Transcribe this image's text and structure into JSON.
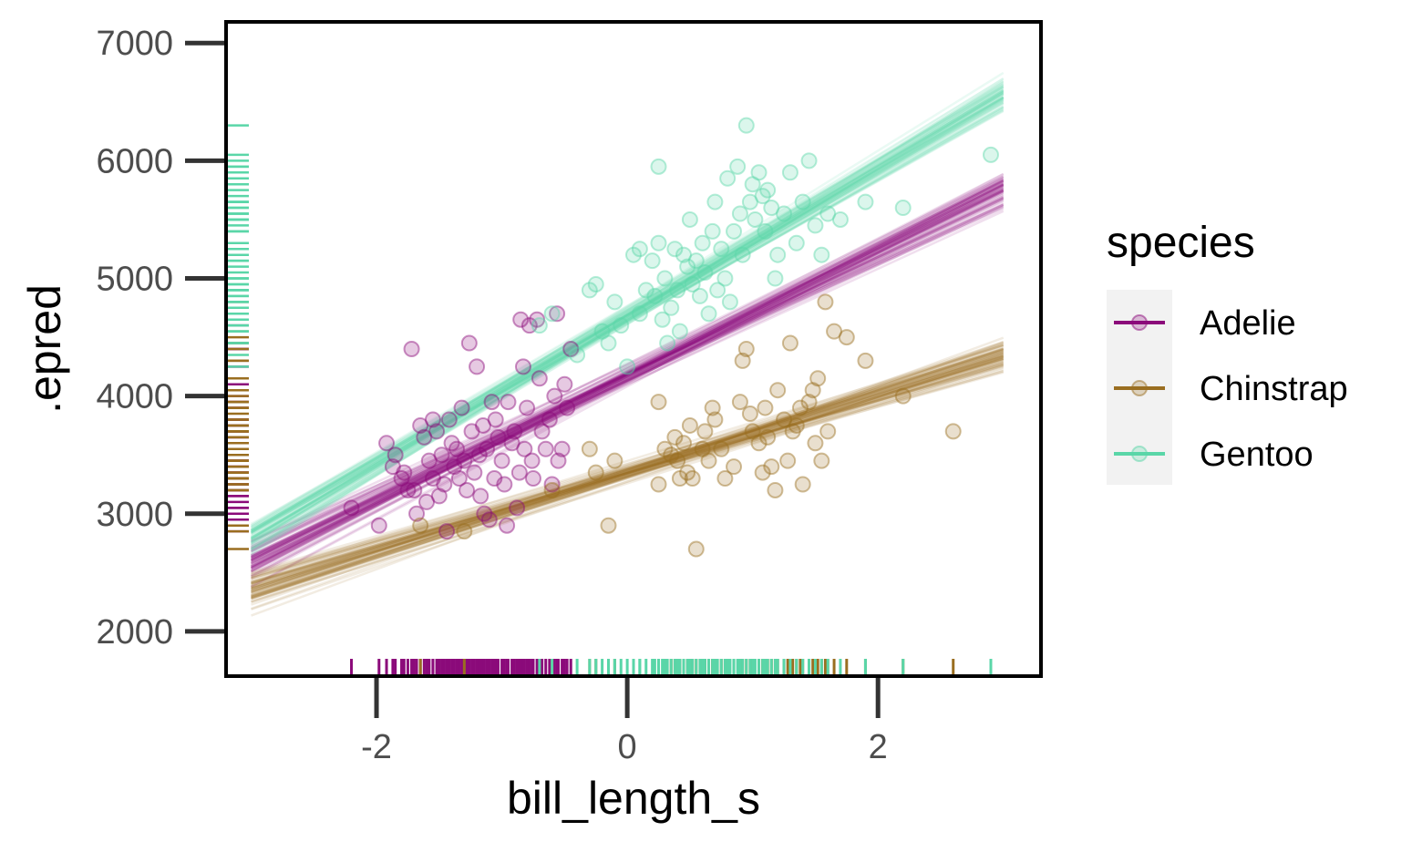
{
  "chart_data": {
    "type": "scatter",
    "xlabel": "bill_length_s",
    "ylabel": ".epred",
    "xlim": [
      -3.2,
      3.3
    ],
    "ylim": [
      1620,
      7180
    ],
    "x_ticks": [
      -2,
      0,
      2
    ],
    "x_tick_labels": [
      "-2",
      "0",
      "2"
    ],
    "y_ticks": [
      2000,
      3000,
      4000,
      5000,
      6000,
      7000
    ],
    "y_tick_labels": [
      "2000",
      "3000",
      "4000",
      "5000",
      "6000",
      "7000"
    ],
    "grid": false,
    "rugs": true,
    "legend": {
      "title": "species",
      "position": "right",
      "entries": [
        "Adelie",
        "Chinstrap",
        "Gentoo"
      ]
    },
    "series": [
      {
        "name": "Adelie",
        "color": "#8B0A7A",
        "fit_line": {
          "x": [
            -3.0,
            3.0
          ],
          "y": [
            2600,
            5750
          ]
        },
        "points": [
          [
            -2.2,
            3050
          ],
          [
            -1.98,
            2900
          ],
          [
            -1.92,
            3600
          ],
          [
            -1.87,
            3400
          ],
          [
            -1.85,
            3500
          ],
          [
            -1.8,
            3300
          ],
          [
            -1.78,
            3350
          ],
          [
            -1.75,
            3200
          ],
          [
            -1.72,
            4400
          ],
          [
            -1.7,
            3200
          ],
          [
            -1.68,
            3000
          ],
          [
            -1.65,
            3750
          ],
          [
            -1.62,
            3650
          ],
          [
            -1.6,
            3100
          ],
          [
            -1.58,
            3450
          ],
          [
            -1.55,
            3800
          ],
          [
            -1.55,
            3300
          ],
          [
            -1.52,
            3700
          ],
          [
            -1.5,
            3150
          ],
          [
            -1.48,
            3500
          ],
          [
            -1.46,
            3250
          ],
          [
            -1.44,
            2850
          ],
          [
            -1.42,
            3800
          ],
          [
            -1.4,
            3600
          ],
          [
            -1.38,
            3400
          ],
          [
            -1.36,
            3550
          ],
          [
            -1.34,
            3300
          ],
          [
            -1.32,
            3900
          ],
          [
            -1.3,
            3450
          ],
          [
            -1.28,
            3200
          ],
          [
            -1.26,
            4450
          ],
          [
            -1.24,
            3700
          ],
          [
            -1.22,
            3350
          ],
          [
            -1.2,
            4250
          ],
          [
            -1.18,
            3500
          ],
          [
            -1.17,
            3150
          ],
          [
            -1.15,
            3750
          ],
          [
            -1.14,
            3000
          ],
          [
            -1.12,
            3550
          ],
          [
            -1.1,
            2950
          ],
          [
            -1.08,
            3950
          ],
          [
            -1.06,
            3300
          ],
          [
            -1.05,
            3800
          ],
          [
            -1.03,
            3650
          ],
          [
            -1.0,
            3450
          ],
          [
            -0.98,
            3250
          ],
          [
            -0.96,
            2900
          ],
          [
            -0.95,
            3950
          ],
          [
            -0.92,
            3600
          ],
          [
            -0.9,
            3700
          ],
          [
            -0.88,
            3050
          ],
          [
            -0.86,
            3350
          ],
          [
            -0.85,
            4650
          ],
          [
            -0.83,
            4250
          ],
          [
            -0.82,
            3550
          ],
          [
            -0.8,
            3900
          ],
          [
            -0.78,
            4600
          ],
          [
            -0.76,
            3450
          ],
          [
            -0.75,
            3300
          ],
          [
            -0.72,
            4650
          ],
          [
            -0.7,
            4150
          ],
          [
            -0.68,
            3700
          ],
          [
            -0.65,
            3550
          ],
          [
            -0.62,
            3800
          ],
          [
            -0.6,
            3250
          ],
          [
            -0.58,
            4000
          ],
          [
            -0.56,
            4700
          ],
          [
            -0.55,
            3450
          ],
          [
            -0.52,
            3550
          ],
          [
            -0.5,
            4100
          ],
          [
            -0.48,
            3900
          ],
          [
            -0.45,
            4400
          ]
        ]
      },
      {
        "name": "Chinstrap",
        "color": "#9A6E20",
        "fit_line": {
          "x": [
            -3.0,
            3.0
          ],
          "y": [
            2350,
            4350
          ]
        },
        "points": [
          [
            -1.65,
            2900
          ],
          [
            -1.3,
            2850
          ],
          [
            -0.6,
            3200
          ],
          [
            -0.3,
            3550
          ],
          [
            -0.25,
            3350
          ],
          [
            -0.1,
            3450
          ],
          [
            -0.15,
            2900
          ],
          [
            0.25,
            3950
          ],
          [
            0.25,
            3250
          ],
          [
            0.3,
            3550
          ],
          [
            0.35,
            3500
          ],
          [
            0.38,
            3650
          ],
          [
            0.4,
            3450
          ],
          [
            0.42,
            3300
          ],
          [
            0.45,
            3600
          ],
          [
            0.48,
            3350
          ],
          [
            0.5,
            3750
          ],
          [
            0.52,
            3300
          ],
          [
            0.55,
            2700
          ],
          [
            0.6,
            3550
          ],
          [
            0.62,
            3700
          ],
          [
            0.65,
            3450
          ],
          [
            0.68,
            3900
          ],
          [
            0.7,
            3800
          ],
          [
            0.75,
            3550
          ],
          [
            0.78,
            3300
          ],
          [
            0.85,
            3400
          ],
          [
            0.9,
            3950
          ],
          [
            0.92,
            4300
          ],
          [
            0.95,
            4400
          ],
          [
            0.98,
            3850
          ],
          [
            1.0,
            3700
          ],
          [
            1.05,
            3600
          ],
          [
            1.08,
            3350
          ],
          [
            1.1,
            3900
          ],
          [
            1.12,
            3650
          ],
          [
            1.15,
            3400
          ],
          [
            1.18,
            3200
          ],
          [
            1.2,
            4050
          ],
          [
            1.25,
            3800
          ],
          [
            1.28,
            3450
          ],
          [
            1.3,
            4450
          ],
          [
            1.32,
            3700
          ],
          [
            1.35,
            3750
          ],
          [
            1.38,
            3900
          ],
          [
            1.4,
            3250
          ],
          [
            1.45,
            3950
          ],
          [
            1.48,
            4050
          ],
          [
            1.5,
            3600
          ],
          [
            1.52,
            4150
          ],
          [
            1.55,
            3450
          ],
          [
            1.58,
            4800
          ],
          [
            1.6,
            3700
          ],
          [
            1.65,
            4550
          ],
          [
            1.75,
            4500
          ],
          [
            1.9,
            4300
          ],
          [
            2.2,
            4000
          ],
          [
            2.6,
            3700
          ]
        ]
      },
      {
        "name": "Gentoo",
        "color": "#5AD6A8",
        "fit_line": {
          "x": [
            -3.0,
            3.0
          ],
          "y": [
            2800,
            6550
          ]
        },
        "points": [
          [
            -0.6,
            4700
          ],
          [
            -0.4,
            4350
          ],
          [
            -0.3,
            4900
          ],
          [
            -0.25,
            4950
          ],
          [
            -0.2,
            4550
          ],
          [
            -0.15,
            4450
          ],
          [
            -0.1,
            4800
          ],
          [
            -0.05,
            4600
          ],
          [
            0.0,
            4250
          ],
          [
            0.05,
            5200
          ],
          [
            0.1,
            4700
          ],
          [
            0.15,
            4900
          ],
          [
            0.2,
            5150
          ],
          [
            0.22,
            4850
          ],
          [
            0.25,
            5300
          ],
          [
            0.28,
            4650
          ],
          [
            0.3,
            5000
          ],
          [
            0.32,
            4450
          ],
          [
            0.35,
            4750
          ],
          [
            0.38,
            5250
          ],
          [
            0.4,
            4900
          ],
          [
            0.42,
            4550
          ],
          [
            0.45,
            5200
          ],
          [
            0.48,
            5100
          ],
          [
            0.5,
            5500
          ],
          [
            0.52,
            4950
          ],
          [
            0.55,
            5150
          ],
          [
            0.58,
            4850
          ],
          [
            0.6,
            5300
          ],
          [
            0.62,
            5050
          ],
          [
            0.65,
            4700
          ],
          [
            0.68,
            5400
          ],
          [
            0.7,
            5650
          ],
          [
            0.72,
            4900
          ],
          [
            0.75,
            5250
          ],
          [
            0.78,
            5000
          ],
          [
            0.8,
            5850
          ],
          [
            0.82,
            4800
          ],
          [
            0.85,
            5400
          ],
          [
            0.88,
            5950
          ],
          [
            0.9,
            5550
          ],
          [
            0.92,
            5200
          ],
          [
            0.95,
            6300
          ],
          [
            0.98,
            5650
          ],
          [
            1.0,
            5800
          ],
          [
            1.02,
            5500
          ],
          [
            1.05,
            5900
          ],
          [
            1.08,
            5700
          ],
          [
            1.1,
            5400
          ],
          [
            1.12,
            5750
          ],
          [
            1.15,
            5600
          ],
          [
            1.18,
            5000
          ],
          [
            1.2,
            5200
          ],
          [
            1.25,
            5550
          ],
          [
            1.3,
            5900
          ],
          [
            1.35,
            5300
          ],
          [
            1.4,
            5650
          ],
          [
            1.45,
            6000
          ],
          [
            1.5,
            5450
          ],
          [
            1.55,
            5200
          ],
          [
            1.6,
            5550
          ],
          [
            1.7,
            5500
          ],
          [
            0.25,
            5950
          ],
          [
            0.1,
            5250
          ],
          [
            2.2,
            5600
          ],
          [
            2.9,
            6050
          ],
          [
            -0.7,
            4600
          ],
          [
            1.9,
            5650
          ]
        ]
      }
    ]
  }
}
